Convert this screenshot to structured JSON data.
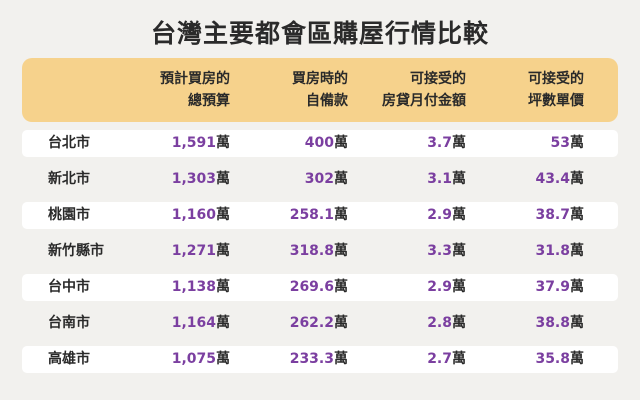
{
  "title": "台灣主要都會區購屋行情比較",
  "unit": "萬",
  "header": {
    "col1": [
      "預計買房的",
      "總預算"
    ],
    "col2": [
      "買房時的",
      "自備款"
    ],
    "col3": [
      "可接受的",
      "房貸月付金額"
    ],
    "col4": [
      "可接受的",
      "坪數單價"
    ]
  },
  "rows": [
    {
      "city": "台北市",
      "budget": "1,591",
      "down_payment": "400",
      "monthly": "3.7",
      "unit_price": "53"
    },
    {
      "city": "新北市",
      "budget": "1,303",
      "down_payment": "302",
      "monthly": "3.1",
      "unit_price": "43.4"
    },
    {
      "city": "桃園市",
      "budget": "1,160",
      "down_payment": "258.1",
      "monthly": "2.9",
      "unit_price": "38.7"
    },
    {
      "city": "新竹縣市",
      "budget": "1,271",
      "down_payment": "318.8",
      "monthly": "3.3",
      "unit_price": "31.8"
    },
    {
      "city": "台中市",
      "budget": "1,138",
      "down_payment": "269.6",
      "monthly": "2.9",
      "unit_price": "37.9"
    },
    {
      "city": "台南市",
      "budget": "1,164",
      "down_payment": "262.2",
      "monthly": "2.8",
      "unit_price": "38.8"
    },
    {
      "city": "高雄市",
      "budget": "1,075",
      "down_payment": "233.3",
      "monthly": "2.7",
      "unit_price": "35.8"
    }
  ],
  "colors": {
    "header_bg": "#f6d28c",
    "value": "#7b3fa0",
    "page_bg": "#f2f1ee",
    "row_bg": "#ffffff"
  }
}
